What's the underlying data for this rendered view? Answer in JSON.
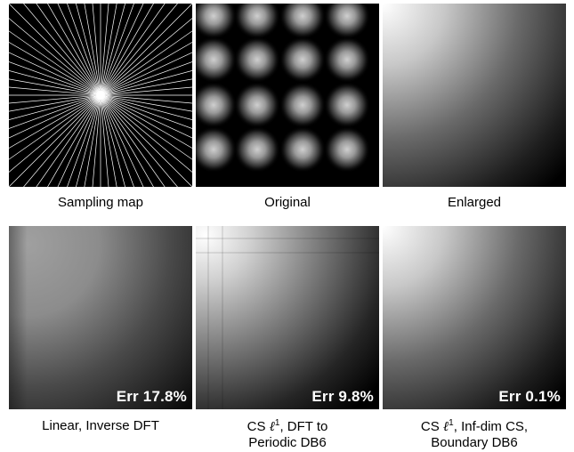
{
  "panels": [
    {
      "caption": "Sampling map"
    },
    {
      "caption": "Original"
    },
    {
      "caption": "Enlarged"
    },
    {
      "caption_line1": "Linear, Inverse DFT",
      "err": "Err 17.8%"
    },
    {
      "caption_pre": "CS ",
      "caption_ell": "ℓ",
      "caption_sup": "1",
      "caption_post": ", DFT to",
      "caption_line2": "Periodic DB6",
      "err": "Err 9.8%"
    },
    {
      "caption_pre": "CS ",
      "caption_ell": "ℓ",
      "caption_sup": "1",
      "caption_post": ", Inf-dim CS,",
      "caption_line2": "Boundary DB6",
      "err": "Err 0.1%"
    }
  ],
  "colors": {
    "background": "#000000",
    "line": "#ffffff",
    "text": "#000000",
    "label": "#ffffff"
  }
}
